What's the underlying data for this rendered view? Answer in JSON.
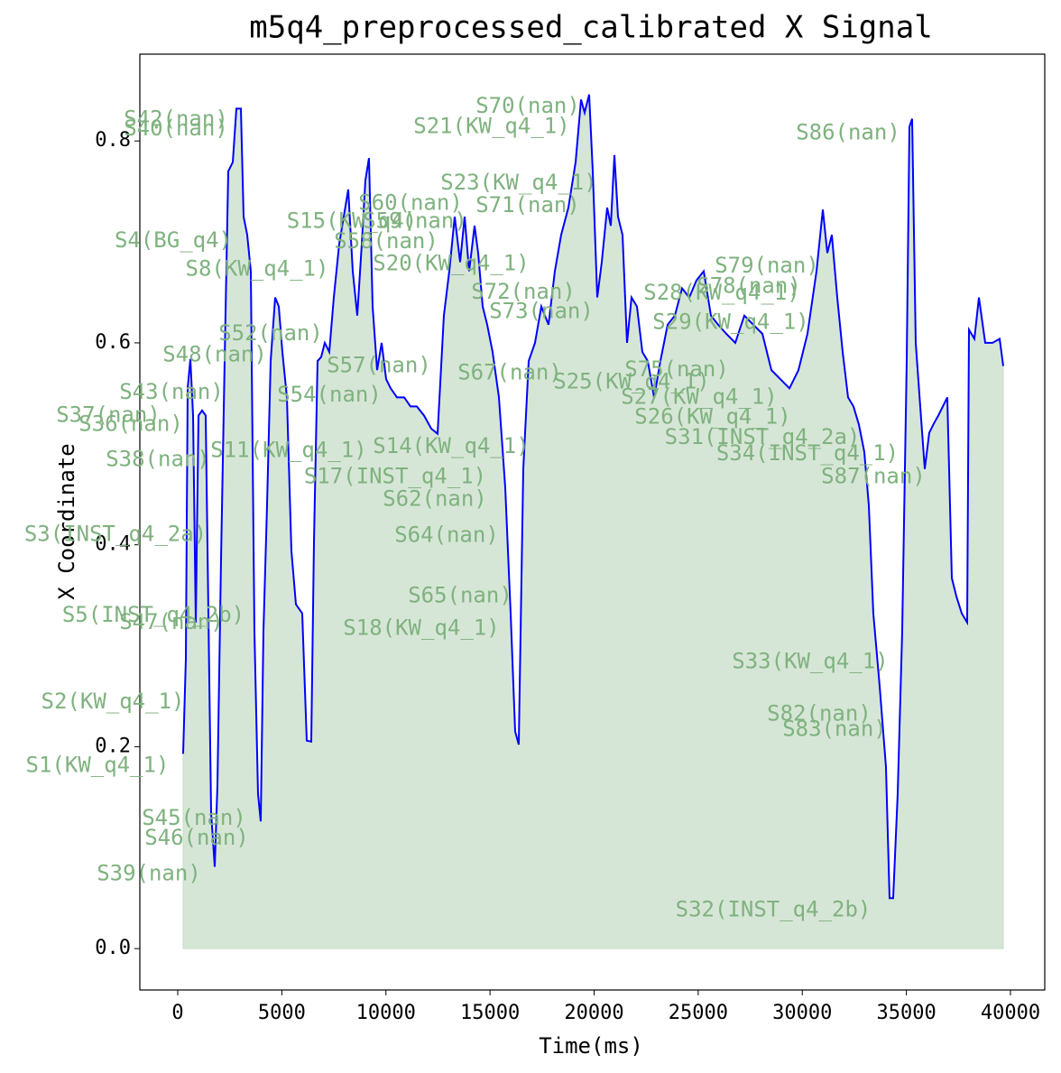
{
  "chart_data": {
    "type": "line",
    "title": "m5q4_preprocessed_calibrated X Signal",
    "x_label": "Time(ms)",
    "y_label": "X Coordinate",
    "xlim": [
      -1820,
      41647
    ],
    "ylim": [
      -0.041,
      0.886
    ],
    "xticks": [
      0,
      5000,
      10000,
      15000,
      20000,
      25000,
      30000,
      35000,
      40000
    ],
    "yticks": [
      {
        "value": 0,
        "label": "0.0"
      },
      0.2,
      0.4,
      0.6,
      0.8
    ],
    "grid": false,
    "fill_color": "#d6e6d6",
    "series": [
      {
        "name": "X",
        "color": "#0000ff",
        "x": [
          260,
          390,
          477,
          607,
          737,
          867,
          997,
          1170,
          1343,
          1473,
          1603,
          1777,
          1907,
          2080,
          2253,
          2427,
          2644,
          2817,
          3034,
          3164,
          3337,
          3510,
          3684,
          3857,
          3987,
          4117,
          4290,
          4464,
          4680,
          4854,
          5027,
          5244,
          5460,
          5677,
          5980,
          6197,
          6414,
          6544,
          6717,
          6890,
          7064,
          7280,
          7497,
          7757,
          7974,
          8190,
          8407,
          8624,
          8841,
          9014,
          9187,
          9361,
          9578,
          9794,
          10011,
          10228,
          10531,
          10878,
          11181,
          11484,
          11831,
          12178,
          12481,
          12784,
          13044,
          13304,
          13564,
          13781,
          13998,
          14258,
          14431,
          14648,
          14865,
          15124,
          15428,
          15731,
          15991,
          16208,
          16381,
          16598,
          16858,
          17161,
          17465,
          17811,
          18115,
          18418,
          18765,
          19112,
          19372,
          19545,
          19762,
          19935,
          20152,
          20368,
          20628,
          20802,
          20975,
          21148,
          21365,
          21582,
          21798,
          22058,
          22318,
          22578,
          22882,
          23185,
          23532,
          23879,
          24225,
          24572,
          24919,
          25265,
          25612,
          25959,
          26349,
          26782,
          27216,
          27649,
          28083,
          28516,
          28949,
          29383,
          29816,
          30249,
          30683,
          30986,
          31203,
          31419,
          31679,
          31939,
          32199,
          32459,
          32719,
          32979,
          33196,
          33412,
          33716,
          34019,
          34192,
          34366,
          34582,
          34799,
          35016,
          35146,
          35276,
          35449,
          35666,
          35883,
          36099,
          36316,
          36533,
          36750,
          36966,
          37183,
          37400,
          37660,
          37920,
          38007,
          38267,
          38484,
          38787,
          39134,
          39480,
          39653
        ],
        "values": [
          0.193,
          0.287,
          0.555,
          0.584,
          0.528,
          0.323,
          0.528,
          0.533,
          0.528,
          0.332,
          0.135,
          0.081,
          0.162,
          0.385,
          0.582,
          0.77,
          0.779,
          0.832,
          0.832,
          0.725,
          0.707,
          0.671,
          0.314,
          0.153,
          0.126,
          0.314,
          0.439,
          0.582,
          0.645,
          0.636,
          0.591,
          0.546,
          0.394,
          0.341,
          0.332,
          0.206,
          0.205,
          0.403,
          0.582,
          0.586,
          0.6,
          0.591,
          0.645,
          0.698,
          0.725,
          0.752,
          0.671,
          0.627,
          0.698,
          0.761,
          0.783,
          0.636,
          0.573,
          0.6,
          0.564,
          0.555,
          0.546,
          0.546,
          0.537,
          0.537,
          0.528,
          0.515,
          0.51,
          0.627,
          0.671,
          0.725,
          0.68,
          0.725,
          0.671,
          0.716,
          0.689,
          0.636,
          0.618,
          0.591,
          0.546,
          0.457,
          0.332,
          0.215,
          0.202,
          0.475,
          0.582,
          0.6,
          0.636,
          0.618,
          0.671,
          0.707,
          0.734,
          0.779,
          0.841,
          0.828,
          0.846,
          0.77,
          0.645,
          0.68,
          0.734,
          0.716,
          0.786,
          0.725,
          0.707,
          0.6,
          0.645,
          0.636,
          0.591,
          0.582,
          0.546,
          0.582,
          0.618,
          0.627,
          0.654,
          0.645,
          0.662,
          0.671,
          0.627,
          0.618,
          0.609,
          0.6,
          0.627,
          0.618,
          0.609,
          0.573,
          0.564,
          0.555,
          0.573,
          0.609,
          0.671,
          0.732,
          0.689,
          0.707,
          0.645,
          0.591,
          0.546,
          0.537,
          0.519,
          0.492,
          0.439,
          0.332,
          0.26,
          0.18,
          0.05,
          0.05,
          0.153,
          0.314,
          0.582,
          0.814,
          0.822,
          0.6,
          0.537,
          0.475,
          0.511,
          0.52,
          0.528,
          0.537,
          0.546,
          0.367,
          0.349,
          0.332,
          0.323,
          0.613,
          0.604,
          0.645,
          0.6,
          0.6,
          0.604,
          0.577
        ]
      }
    ],
    "annotations": [
      {
        "text": "S42(nan)",
        "x": -87,
        "y": 0.821
      },
      {
        "text": "S40(nan)",
        "x": -87,
        "y": 0.812
      },
      {
        "text": "S70(nan)",
        "x": 16815,
        "y": 0.834
      },
      {
        "text": "S21(KW_q4_1)",
        "x": 15081,
        "y": 0.814
      },
      {
        "text": "S86(nan)",
        "x": 32199,
        "y": 0.808
      },
      {
        "text": "S23(KW_q4_1)",
        "x": 16381,
        "y": 0.758
      },
      {
        "text": "S60(nan)",
        "x": 11181,
        "y": 0.738
      },
      {
        "text": "S71(nan)",
        "x": 16815,
        "y": 0.736
      },
      {
        "text": "S15(KW_q4)",
        "x": 8364,
        "y": 0.72
      },
      {
        "text": "S59(nan)",
        "x": 11397,
        "y": 0.72
      },
      {
        "text": "S4(BG_q4)",
        "x": -217,
        "y": 0.701
      },
      {
        "text": "S58(nan)",
        "x": 10011,
        "y": 0.7
      },
      {
        "text": "S20(KW_q4_1)",
        "x": 13131,
        "y": 0.678
      },
      {
        "text": "S79(nan)",
        "x": 28299,
        "y": 0.676
      },
      {
        "text": "S8(KW_q4_1)",
        "x": 3814,
        "y": 0.673
      },
      {
        "text": "S78(nan)",
        "x": 27432,
        "y": 0.656
      },
      {
        "text": "S72(nan)",
        "x": 16598,
        "y": 0.65
      },
      {
        "text": "S28(KW_q4_1)",
        "x": 26132,
        "y": 0.649
      },
      {
        "text": "S73(nan)",
        "x": 17465,
        "y": 0.631
      },
      {
        "text": "S29(KW_q4_1)",
        "x": 26566,
        "y": 0.62
      },
      {
        "text": "S52(nan)",
        "x": 4464,
        "y": 0.609
      },
      {
        "text": "S48(nan)",
        "x": 1777,
        "y": 0.588
      },
      {
        "text": "S57(nan)",
        "x": 9664,
        "y": 0.577
      },
      {
        "text": "S75(nan)",
        "x": 23965,
        "y": 0.573
      },
      {
        "text": "S67(nan)",
        "x": 15948,
        "y": 0.57
      },
      {
        "text": "S25(KW_q4_1)",
        "x": 21798,
        "y": 0.561
      },
      {
        "text": "S43(nan)",
        "x": -303,
        "y": 0.551
      },
      {
        "text": "S54(nan)",
        "x": 7281,
        "y": 0.548
      },
      {
        "text": "S27(KW_q4_1)",
        "x": 25049,
        "y": 0.546
      },
      {
        "text": "S37(nan)",
        "x": -3337,
        "y": 0.528
      },
      {
        "text": "S26(KW_q4_1)",
        "x": 25699,
        "y": 0.526
      },
      {
        "text": "S36(nan)",
        "x": -2254,
        "y": 0.519
      },
      {
        "text": "S31(INST_q4_2a)",
        "x": 28083,
        "y": 0.506
      },
      {
        "text": "S14(KW_q4_1)",
        "x": 13131,
        "y": 0.497
      },
      {
        "text": "S11(KW_q4_1)",
        "x": 5330,
        "y": 0.493
      },
      {
        "text": "S34(INST_q4_1)",
        "x": 30249,
        "y": 0.49
      },
      {
        "text": "S38(nan)",
        "x": -953,
        "y": 0.484
      },
      {
        "text": "S87(nan)",
        "x": 33412,
        "y": 0.467
      },
      {
        "text": "S17(INST_q4_1)",
        "x": 10444,
        "y": 0.467
      },
      {
        "text": "S62(nan)",
        "x": 12351,
        "y": 0.445
      },
      {
        "text": "S3(INST_q4_2a)",
        "x": -2990,
        "y": 0.41
      },
      {
        "text": "S64(nan)",
        "x": 12914,
        "y": 0.409
      },
      {
        "text": "S65(nan)",
        "x": 13564,
        "y": 0.349
      },
      {
        "text": "S5(INST_q4_2b)",
        "x": -1170,
        "y": 0.33
      },
      {
        "text": "S47(nan)",
        "x": -303,
        "y": 0.323
      },
      {
        "text": "S18(KW_q4_1)",
        "x": 11701,
        "y": 0.317
      },
      {
        "text": "S33(KW_q4_1)",
        "x": 30379,
        "y": 0.284
      },
      {
        "text": "S2(KW_q4_1)",
        "x": -3120,
        "y": 0.244
      },
      {
        "text": "S82(nan)",
        "x": 30812,
        "y": 0.232
      },
      {
        "text": "S83(nan)",
        "x": 31549,
        "y": 0.217
      },
      {
        "text": "S1(KW_q4_1)",
        "x": -3857,
        "y": 0.181
      },
      {
        "text": "S45(nan)",
        "x": 780,
        "y": 0.129
      },
      {
        "text": "S46(nan)",
        "x": 910,
        "y": 0.109
      },
      {
        "text": "S39(nan)",
        "x": -1387,
        "y": 0.074
      },
      {
        "text": "S32(INST_q4_2b)",
        "x": 28603,
        "y": 0.038
      }
    ]
  }
}
